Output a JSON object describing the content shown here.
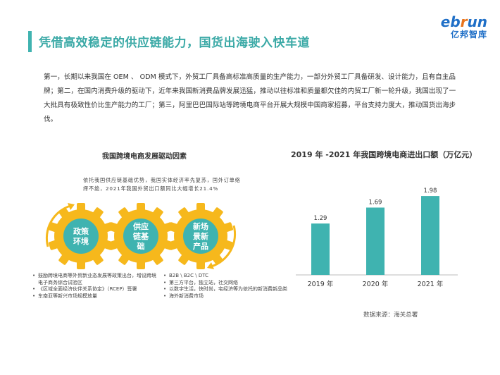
{
  "page": {
    "title": "凭借高效稳定的供应链能力，国货出海驶入快车道",
    "logo_en_1": "eb",
    "logo_en_2": "r",
    "logo_en_3": "un",
    "logo_cn": "亿邦智库",
    "body_text": "第一，长期以来我国在 OEM 、 ODM 模式下，外贸工厂具备高标准高质量的生产能力，一部分外贸工厂具备研发、设计能力，且有自主品牌；第二，在国内消费升级的驱动下，近年来我国新消费品牌发展迅猛，推动以往标准和质量都欠佳的内贸工厂新一轮升级，我国出现了一大批具有极致性价比生产能力的工厂；第三，阿里巴巴国际站等跨境电商平台开展大规模中国商家招募，平台支持力度大，推动国货出海步伐。",
    "source": "数据来源：海关总署"
  },
  "diagram": {
    "title": "我国跨境电商发展驱动因素",
    "note": "依托我国供应链基础优势，我国实体经济率先复苏，国外订单络绎不绝，2021年我国外贸出口额同比大幅增长21.4%",
    "gears": [
      {
        "line1": "政策",
        "line2": "环境",
        "line3": ""
      },
      {
        "line1": "供应",
        "line2": "链基",
        "line3": "础"
      },
      {
        "line1": "新场",
        "line2": "景新",
        "line3": "产品"
      }
    ],
    "gear_color": "#f6b81c",
    "gear_inner_color": "#3fb3b0",
    "bullets_left": [
      "鼓励跨境电商等外贸新业态发展等政策出台，增设跨境电子商务综合试验区",
      "《区域全面经济伙伴关系协定》（RCEP）签署",
      "东南亚等新兴市场规模放量"
    ],
    "bullets_right": [
      "B2B \\ B2C \\ DTC",
      "第三方平台，独立站，社交网络",
      "以数字生活，快时尚，宅经济等为依托的新消费新品类",
      "海外新消费市场"
    ]
  },
  "chart_data": {
    "type": "bar",
    "title": "2019 年 -2021 年我国跨境电商进出口额（万亿元）",
    "categories": [
      "2019 年",
      "2020 年",
      "2021 年"
    ],
    "values": [
      1.29,
      1.69,
      1.98
    ],
    "value_labels": [
      "1.29",
      "1.69",
      "1.98"
    ],
    "ylim": [
      0,
      2.3
    ],
    "bar_color": "#3fb3b0",
    "grid": false
  }
}
